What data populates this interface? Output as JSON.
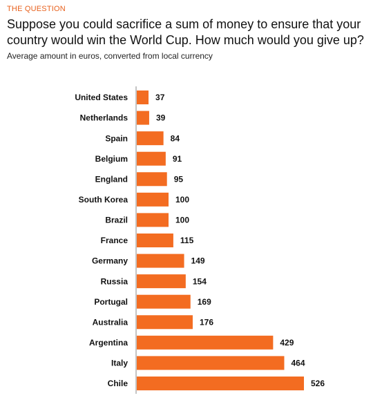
{
  "chart_data": {
    "type": "bar",
    "orientation": "horizontal",
    "kicker": "THE QUESTION",
    "title": "Suppose you could sacrifice a sum of money to ensure that your country would win the World Cup. How much would you give up?",
    "subtitle": "Average amount in euros, converted from local currency",
    "categories": [
      "United States",
      "Netherlands",
      "Spain",
      "Belgium",
      "England",
      "South Korea",
      "Brazil",
      "France",
      "Germany",
      "Russia",
      "Portugal",
      "Australia",
      "Argentina",
      "Italy",
      "Chile"
    ],
    "values": [
      37,
      39,
      84,
      91,
      95,
      100,
      100,
      115,
      149,
      154,
      169,
      176,
      429,
      464,
      526
    ],
    "color": "#f36c21"
  }
}
